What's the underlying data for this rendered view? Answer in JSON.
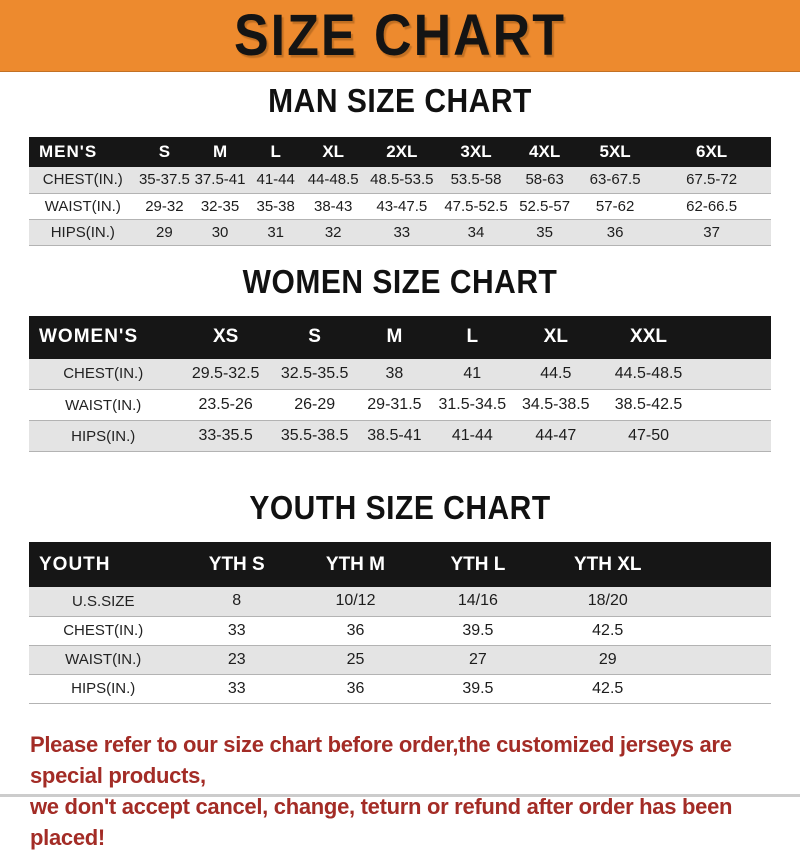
{
  "banner": {
    "title": "SIZE CHART",
    "bg_color": "#ED8A2E",
    "text_color": "#141414"
  },
  "sections": [
    {
      "title": "MAN SIZE CHART",
      "header_label": "MEN'S",
      "columns": [
        "S",
        "M",
        "L",
        "XL",
        "2XL",
        "3XL",
        "4XL",
        "5XL",
        "6XL"
      ],
      "rows": [
        {
          "label": "CHEST(IN.)",
          "values": [
            "35-37.5",
            "37.5-41",
            "41-44",
            "44-48.5",
            "48.5-53.5",
            "53.5-58",
            "58-63",
            "63-67.5",
            "67.5-72"
          ]
        },
        {
          "label": "WAIST(IN.)",
          "values": [
            "29-32",
            "32-35",
            "35-38",
            "38-43",
            "43-47.5",
            "47.5-52.5",
            "52.5-57",
            "57-62",
            "62-66.5"
          ]
        },
        {
          "label": "HIPS(IN.)",
          "values": [
            "29",
            "30",
            "31",
            "32",
            "33",
            "34",
            "35",
            "36",
            "37"
          ]
        }
      ]
    },
    {
      "title": "WOMEN SIZE CHART",
      "header_label": "WOMEN'S",
      "columns": [
        "XS",
        "S",
        "M",
        "L",
        "XL",
        "XXL"
      ],
      "rows": [
        {
          "label": "CHEST(IN.)",
          "values": [
            "29.5-32.5",
            "32.5-35.5",
            "38",
            "41",
            "44.5",
            "44.5-48.5"
          ]
        },
        {
          "label": "WAIST(IN.)",
          "values": [
            "23.5-26",
            "26-29",
            "29-31.5",
            "31.5-34.5",
            "34.5-38.5",
            "38.5-42.5"
          ]
        },
        {
          "label": "HIPS(IN.)",
          "values": [
            "33-35.5",
            "35.5-38.5",
            "38.5-41",
            "41-44",
            "44-47",
            "47-50"
          ]
        }
      ]
    },
    {
      "title": "YOUTH SIZE CHART",
      "header_label": "YOUTH",
      "columns": [
        "YTH S",
        "YTH M",
        "YTH L",
        "YTH XL"
      ],
      "rows": [
        {
          "label": "U.S.SIZE",
          "values": [
            "8",
            "10/12",
            "14/16",
            "18/20"
          ]
        },
        {
          "label": "CHEST(IN.)",
          "values": [
            "33",
            "36",
            "39.5",
            "42.5"
          ]
        },
        {
          "label": "WAIST(IN.)",
          "values": [
            "23",
            "25",
            "27",
            "29"
          ]
        },
        {
          "label": "HIPS(IN.)",
          "values": [
            "33",
            "36",
            "39.5",
            "42.5"
          ]
        }
      ]
    }
  ],
  "footer": {
    "line1": "Please refer to our size chart before order,the customized jerseys are special products,",
    "line2": "we don't accept cancel, change, teturn or refund after order has been placed!",
    "text_color": "#A32C26"
  }
}
